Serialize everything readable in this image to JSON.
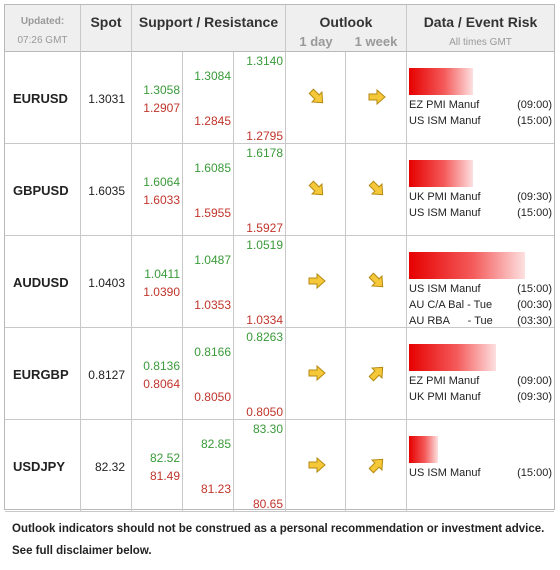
{
  "header": {
    "updated_label": "Updated:",
    "updated_time": "07:26 GMT",
    "spot": "Spot",
    "sr": "Support / Resistance",
    "outlook": "Outlook",
    "outlook_1d": "1 day",
    "outlook_1w": "1 week",
    "events": "Data / Event Risk",
    "events_sub": "All times GMT"
  },
  "rows": [
    {
      "pair": "EURUSD",
      "spot": "1.3031",
      "s1": "1.3058",
      "r1": "1.2907",
      "s2": "1.3084",
      "r2": "1.2845",
      "s3": "1.3140",
      "r3": "1.2795",
      "outlook_1d": "down-right",
      "outlook_1w": "right",
      "risk": 0.55,
      "events": [
        {
          "name": "EZ PMI Manuf",
          "time": "(09:00)"
        },
        {
          "name": "US ISM Manuf",
          "time": "(15:00)"
        }
      ]
    },
    {
      "pair": "GBPUSD",
      "spot": "1.6035",
      "s1": "1.6064",
      "r1": "1.6033",
      "s2": "1.6085",
      "r2": "1.5955",
      "s3": "1.6178",
      "r3": "1.5927",
      "outlook_1d": "down-right",
      "outlook_1w": "down-right",
      "risk": 0.55,
      "events": [
        {
          "name": "UK PMI Manuf",
          "time": "(09:30)"
        },
        {
          "name": "US ISM Manuf",
          "time": "(15:00)"
        }
      ]
    },
    {
      "pair": "AUDUSD",
      "spot": "1.0403",
      "s1": "1.0411",
      "r1": "1.0390",
      "s2": "1.0487",
      "r2": "1.0353",
      "s3": "1.0519",
      "r3": "1.0334",
      "outlook_1d": "right",
      "outlook_1w": "down-right",
      "risk": 1.0,
      "events": [
        {
          "name": "US ISM Manuf",
          "time": "(15:00)"
        },
        {
          "name": "AU C/A Bal - Tue",
          "time": "(00:30)"
        },
        {
          "name": "AU RBA      - Tue",
          "time": "(03:30)"
        }
      ]
    },
    {
      "pair": "EURGBP",
      "spot": "0.8127",
      "s1": "0.8136",
      "r1": "0.8064",
      "s2": "0.8166",
      "r2": "0.8050",
      "s3": "0.8263",
      "r3": "0.8050",
      "outlook_1d": "right",
      "outlook_1w": "up-right",
      "risk": 0.75,
      "events": [
        {
          "name": "EZ PMI Manuf",
          "time": "(09:00)"
        },
        {
          "name": "UK PMI Manuf",
          "time": "(09:30)"
        }
      ]
    },
    {
      "pair": "USDJPY",
      "spot": "82.32",
      "s1": "82.52",
      "r1": "81.49",
      "s2": "82.85",
      "r2": "81.23",
      "s3": "83.30",
      "r3": "80.65",
      "outlook_1d": "right",
      "outlook_1w": "up-right",
      "risk": 0.25,
      "events": [
        {
          "name": "US ISM Manuf",
          "time": "(15:00)"
        }
      ]
    }
  ],
  "footer": {
    "line1": "Outlook indicators should not be construed as a personal recommendation or investment advice.",
    "line2": "See full disclaimer below."
  },
  "colors": {
    "support": "#3a9a3a",
    "resistance": "#c0352b",
    "arrow": "#f5c83a",
    "risk": "#e60000"
  }
}
